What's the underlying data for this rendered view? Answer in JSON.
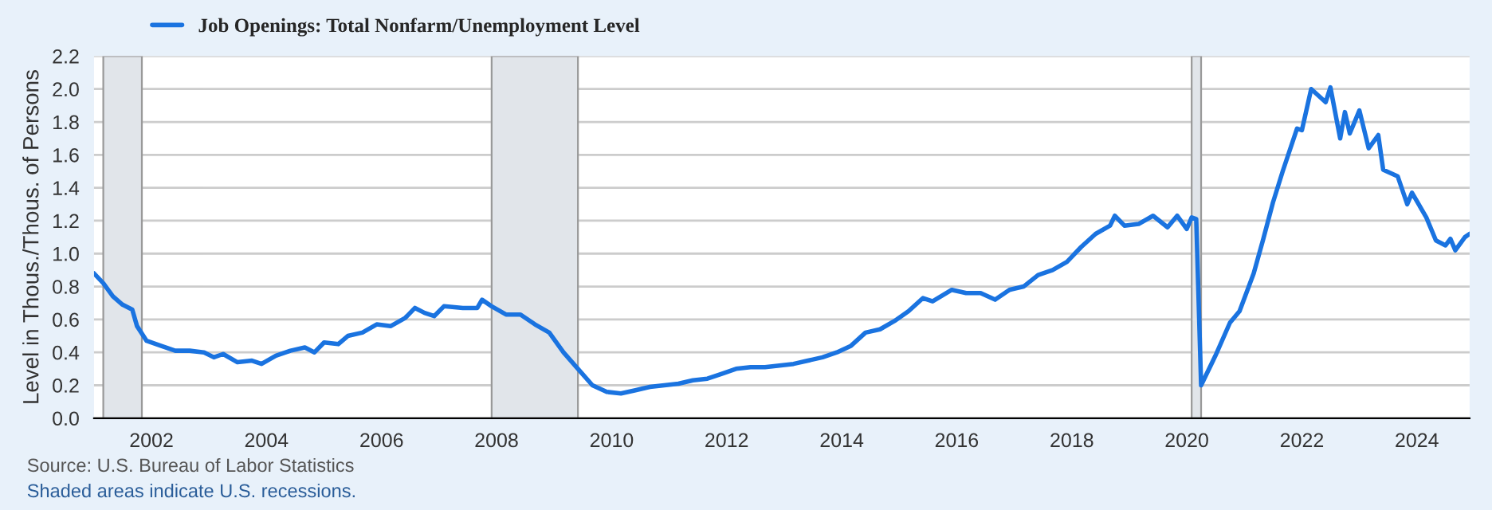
{
  "chart_data": {
    "type": "line",
    "ylabel": "Level in Thous./Thous. of Persons",
    "x": [
      "2001-01",
      "2001-03",
      "2001-05",
      "2001-07",
      "2001-09",
      "2001-10",
      "2001-12",
      "2002-03",
      "2002-06",
      "2002-09",
      "2002-12",
      "2003-02",
      "2003-04",
      "2003-07",
      "2003-10",
      "2003-12",
      "2004-03",
      "2004-06",
      "2004-09",
      "2004-11",
      "2005-01",
      "2005-04",
      "2005-06",
      "2005-09",
      "2005-12",
      "2006-03",
      "2006-06",
      "2006-08",
      "2006-10",
      "2006-12",
      "2007-02",
      "2007-06",
      "2007-09",
      "2007-10",
      "2007-12",
      "2008-03",
      "2008-06",
      "2008-09",
      "2008-12",
      "2009-03",
      "2009-06",
      "2009-09",
      "2009-12",
      "2010-03",
      "2010-06",
      "2010-09",
      "2010-12",
      "2011-03",
      "2011-06",
      "2011-09",
      "2011-12",
      "2012-03",
      "2012-06",
      "2012-09",
      "2012-12",
      "2013-03",
      "2013-06",
      "2013-09",
      "2013-12",
      "2014-03",
      "2014-06",
      "2014-09",
      "2014-12",
      "2015-03",
      "2015-06",
      "2015-08",
      "2015-12",
      "2016-03",
      "2016-06",
      "2016-09",
      "2016-12",
      "2017-03",
      "2017-06",
      "2017-09",
      "2017-12",
      "2018-03",
      "2018-06",
      "2018-09",
      "2018-10",
      "2018-12",
      "2019-03",
      "2019-06",
      "2019-09",
      "2019-11",
      "2020-01",
      "2020-02",
      "2020-03",
      "2020-04",
      "2020-07",
      "2020-10",
      "2020-12",
      "2021-03",
      "2021-05",
      "2021-07",
      "2021-09",
      "2021-12",
      "2022-01",
      "2022-03",
      "2022-06",
      "2022-07",
      "2022-09",
      "2022-10",
      "2022-11",
      "2023-01",
      "2023-03",
      "2023-05",
      "2023-06",
      "2023-09",
      "2023-11",
      "2023-12",
      "2024-03",
      "2024-05",
      "2024-07",
      "2024-08",
      "2024-09",
      "2024-11",
      "2024-12"
    ],
    "series": [
      {
        "name": "Job Openings: Total Nonfarm/Unemployment Level",
        "color": "#1a73e0",
        "values": [
          0.88,
          0.82,
          0.74,
          0.69,
          0.66,
          0.56,
          0.47,
          0.44,
          0.41,
          0.41,
          0.4,
          0.37,
          0.39,
          0.34,
          0.35,
          0.33,
          0.38,
          0.41,
          0.43,
          0.4,
          0.46,
          0.45,
          0.5,
          0.52,
          0.57,
          0.56,
          0.61,
          0.67,
          0.64,
          0.62,
          0.68,
          0.67,
          0.67,
          0.72,
          0.68,
          0.63,
          0.63,
          0.57,
          0.52,
          0.4,
          0.3,
          0.2,
          0.16,
          0.15,
          0.17,
          0.19,
          0.2,
          0.21,
          0.23,
          0.24,
          0.27,
          0.3,
          0.31,
          0.31,
          0.32,
          0.33,
          0.35,
          0.37,
          0.4,
          0.44,
          0.52,
          0.54,
          0.59,
          0.65,
          0.73,
          0.71,
          0.78,
          0.76,
          0.76,
          0.72,
          0.78,
          0.8,
          0.87,
          0.9,
          0.95,
          1.04,
          1.12,
          1.17,
          1.23,
          1.17,
          1.18,
          1.23,
          1.16,
          1.23,
          1.15,
          1.22,
          1.21,
          0.2,
          0.38,
          0.58,
          0.65,
          0.88,
          1.09,
          1.31,
          1.5,
          1.76,
          1.75,
          2.0,
          1.92,
          2.01,
          1.7,
          1.86,
          1.73,
          1.87,
          1.64,
          1.72,
          1.51,
          1.47,
          1.3,
          1.37,
          1.22,
          1.08,
          1.05,
          1.09,
          1.02,
          1.1,
          1.12
        ]
      }
    ],
    "xlim": [
      "2001-01",
      "2024-12"
    ],
    "xticks": [
      "2002",
      "2004",
      "2006",
      "2008",
      "2010",
      "2012",
      "2014",
      "2016",
      "2018",
      "2020",
      "2022",
      "2024"
    ],
    "ylim": [
      0,
      2.2
    ],
    "yticks": [
      {
        "value": 0,
        "label": "0.0"
      },
      0.2,
      0.4,
      0.6,
      0.8,
      {
        "value": 1,
        "label": "1.0"
      },
      1.2,
      1.4,
      1.6,
      1.8,
      {
        "value": 2,
        "label": "2.0"
      },
      2.2
    ],
    "bands": [
      {
        "axis": "x",
        "from": "2001-03",
        "to": "2001-11",
        "color": "#e1e5ea"
      },
      {
        "axis": "x",
        "from": "2007-12",
        "to": "2009-06",
        "color": "#e1e5ea"
      },
      {
        "axis": "x",
        "from": "2020-02",
        "to": "2020-04",
        "color": "#e1e5ea"
      }
    ],
    "grid": "y",
    "legend": "top left",
    "line_style": "solid",
    "annotations": [
      "Source: U.S. Bureau of Labor Statistics",
      "Shaded areas indicate U.S. recessions."
    ]
  }
}
